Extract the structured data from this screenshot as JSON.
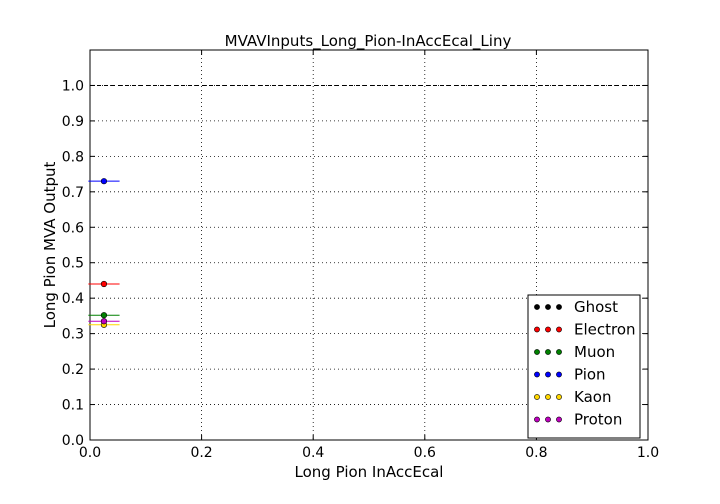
{
  "chart_data": {
    "type": "scatter",
    "title": "MVAVInputs_Long_Pion-InAccEcal_Liny",
    "xlabel": "Long Pion InAccEcal",
    "ylabel": "Long Pion MVA Output",
    "xlim": [
      0.0,
      1.0
    ],
    "ylim": [
      0.0,
      1.1
    ],
    "x_ticks": [
      "0.0",
      "0.2",
      "0.4",
      "0.6",
      "0.8",
      "1.0"
    ],
    "y_ticks": [
      "0.0",
      "0.1",
      "0.2",
      "0.3",
      "0.4",
      "0.5",
      "0.6",
      "0.7",
      "0.8",
      "0.9",
      "1.0"
    ],
    "grid": true,
    "reference_line": 1.0,
    "legend_position": "lower-right",
    "series": [
      {
        "name": "Ghost",
        "color": "#000000",
        "points": []
      },
      {
        "name": "Electron",
        "color": "#ff0000",
        "points": [
          {
            "x": 0.025,
            "y": 0.44,
            "xerr": 0.028
          }
        ]
      },
      {
        "name": "Muon",
        "color": "#008000",
        "points": [
          {
            "x": 0.025,
            "y": 0.352,
            "xerr": 0.028
          }
        ]
      },
      {
        "name": "Pion",
        "color": "#0000ff",
        "points": [
          {
            "x": 0.025,
            "y": 0.73,
            "xerr": 0.028
          }
        ]
      },
      {
        "name": "Kaon",
        "color": "#ffd700",
        "points": [
          {
            "x": 0.025,
            "y": 0.325,
            "xerr": 0.028
          }
        ]
      },
      {
        "name": "Proton",
        "color": "#bf00bf",
        "points": [
          {
            "x": 0.025,
            "y": 0.335,
            "xerr": 0.028
          }
        ]
      }
    ]
  }
}
